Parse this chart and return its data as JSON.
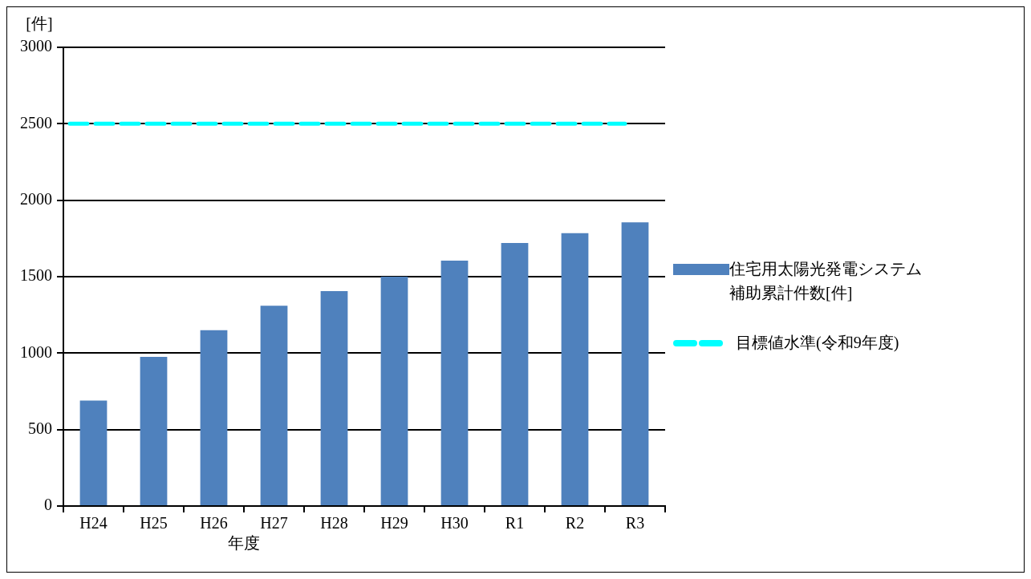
{
  "chart_data": {
    "type": "bar",
    "categories": [
      "H24",
      "H25",
      "H26",
      "H27",
      "H28",
      "H29",
      "H30",
      "R1",
      "R2",
      "R3"
    ],
    "series": [
      {
        "name": "住宅用太陽光発電システム補助累計件数[件]",
        "color": "#4f81bd",
        "values": [
          690,
          975,
          1150,
          1310,
          1405,
          1500,
          1605,
          1720,
          1785,
          1855
        ]
      }
    ],
    "ref_lines": [
      {
        "axis": "y",
        "value": 2500,
        "label": "目標値水準(令和9年度)",
        "color": "#00ffff",
        "line_style": "dashed"
      }
    ],
    "ylabel": "[件]",
    "xlabel": "年度",
    "ylim": [
      0,
      3000
    ],
    "yticks": [
      0,
      500,
      1000,
      1500,
      2000,
      2500,
      3000
    ],
    "grid": "y",
    "legend": "right"
  }
}
